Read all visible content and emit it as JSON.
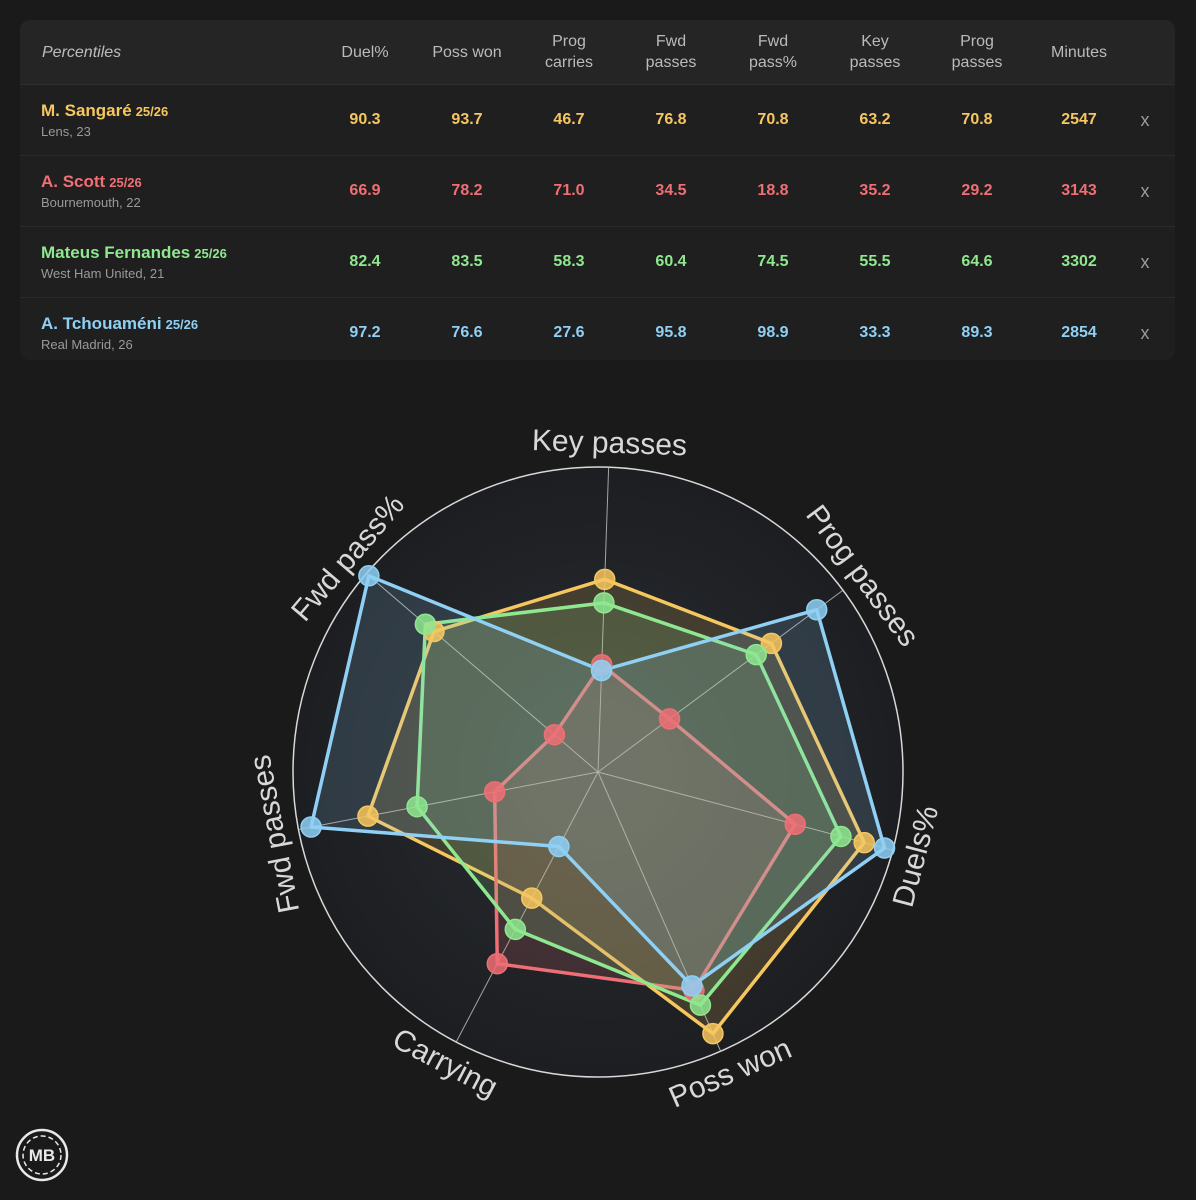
{
  "table": {
    "first_header": "Percentiles",
    "columns": [
      "Duel%",
      "Poss won",
      "Prog\ncarries",
      "Fwd\npasses",
      "Fwd\npass%",
      "Key\npasses",
      "Prog\npasses",
      "Minutes"
    ],
    "remove_label": "x",
    "players": [
      {
        "name": "M. Sangaré",
        "season": "25/26",
        "info": "Lens, 23",
        "color": "#f7c75f",
        "values": [
          "90.3",
          "93.7",
          "46.7",
          "76.8",
          "70.8",
          "63.2",
          "70.8",
          "2547"
        ]
      },
      {
        "name": "A. Scott",
        "season": "25/26",
        "info": "Bournemouth, 22",
        "color": "#ef6f74",
        "values": [
          "66.9",
          "78.2",
          "71.0",
          "34.5",
          "18.8",
          "35.2",
          "29.2",
          "3143"
        ]
      },
      {
        "name": "Mateus Fernandes",
        "season": "25/26",
        "info": "West Ham United, 21",
        "color": "#8fe88f",
        "values": [
          "82.4",
          "83.5",
          "58.3",
          "60.4",
          "74.5",
          "55.5",
          "64.6",
          "3302"
        ]
      },
      {
        "name": "A. Tchouaméni",
        "season": "25/26",
        "info": "Real Madrid, 26",
        "color": "#8fd0f4",
        "values": [
          "97.2",
          "76.6",
          "27.6",
          "95.8",
          "98.9",
          "33.3",
          "89.3",
          "2854"
        ]
      }
    ]
  },
  "chart_data": {
    "type": "radar",
    "axes": [
      "Key passes",
      "Prog passes",
      "Duels%",
      "Poss won",
      "Carrying",
      "Fwd passes",
      "Fwd pass%"
    ],
    "range": [
      0,
      100
    ],
    "grid": true,
    "series": [
      {
        "name": "M. Sangaré",
        "color": "#f7c75f",
        "values": [
          63.2,
          70.8,
          90.3,
          93.7,
          46.7,
          76.8,
          70.8
        ]
      },
      {
        "name": "A. Scott",
        "color": "#ef6f74",
        "values": [
          35.2,
          29.2,
          66.9,
          78.2,
          71.0,
          34.5,
          18.8
        ]
      },
      {
        "name": "Mateus Fernandes",
        "color": "#8fe88f",
        "values": [
          55.5,
          64.6,
          82.4,
          83.5,
          58.3,
          60.4,
          74.5
        ]
      },
      {
        "name": "A. Tchouaméni",
        "color": "#8fd0f4",
        "values": [
          33.3,
          89.3,
          97.2,
          76.6,
          27.6,
          95.8,
          98.9
        ]
      }
    ]
  },
  "logo": {
    "text": "MB"
  }
}
